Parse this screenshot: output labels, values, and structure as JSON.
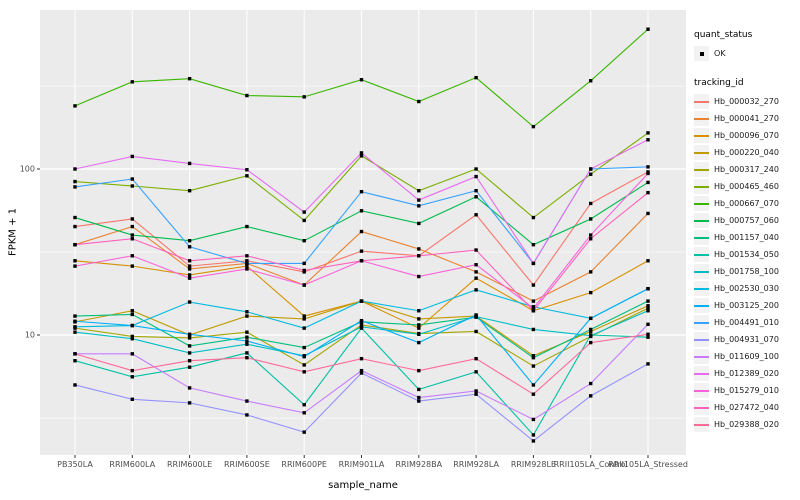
{
  "figure": {
    "background": "#FFFFFF",
    "panel_background": "#EBEBEB",
    "gridline_color": "#FFFFFF",
    "tick_label_color": "#4D4D4D",
    "point_color": "#000000"
  },
  "axes": {
    "x_title": "sample_name",
    "y_title": "FPKM + 1",
    "y_major_ticks": [
      {
        "label": "100",
        "value": 100
      },
      {
        "label": "10",
        "value": 10
      }
    ],
    "y_minor_ticks": [
      316,
      31.6,
      3.16
    ]
  },
  "legend": {
    "quant_status": {
      "title": "quant_status",
      "items": [
        {
          "label": "OK",
          "shape": "black-point"
        }
      ]
    },
    "tracking_id": {
      "title": "tracking_id"
    }
  },
  "chart_data": {
    "type": "line",
    "title": "",
    "xlabel": "sample_name",
    "ylabel": "FPKM + 1",
    "y_scale": "log10",
    "ylim": [
      2,
      900
    ],
    "grid": true,
    "legend_position": "right",
    "point_style": "small black square at every data point (quant_status = OK)",
    "categories": [
      "PB350LA",
      "RRIM600LA",
      "RRIM600LE",
      "RRIM600SE",
      "RRIM600PE",
      "RRIM901LA",
      "RRIM928BA",
      "RRIM928LA",
      "RRIM928LE",
      "RRII105LA_Control",
      "RRII105LA_Stressed"
    ],
    "series": [
      {
        "name": "Hb_000032_270",
        "color": "#F8766D",
        "values": [
          45,
          50,
          26,
          28,
          24,
          32,
          30,
          53,
          20,
          62,
          96
        ]
      },
      {
        "name": "Hb_000041_270",
        "color": "#EA8331",
        "values": [
          35,
          45,
          25,
          27,
          20,
          42,
          33,
          24,
          16,
          24,
          54
        ]
      },
      {
        "name": "Hb_000096_070",
        "color": "#D89000",
        "values": [
          28,
          26,
          23,
          26,
          13,
          16,
          11,
          22,
          14,
          18,
          28
        ]
      },
      {
        "name": "Hb_000220_040",
        "color": "#C09B00",
        "values": [
          12,
          14,
          10,
          13,
          12.5,
          16,
          12.5,
          13,
          7.5,
          10.5,
          15
        ]
      },
      {
        "name": "Hb_000317_240",
        "color": "#A3A500",
        "values": [
          11,
          9.8,
          9.6,
          10.4,
          6.6,
          11.5,
          10.2,
          10.5,
          6.5,
          9.8,
          14.5
        ]
      },
      {
        "name": "Hb_000465_460",
        "color": "#7CAE00",
        "values": [
          84,
          79,
          74,
          91,
          49,
          120,
          74,
          100,
          51,
          93,
          165
        ]
      },
      {
        "name": "Hb_000667_070",
        "color": "#39B600",
        "values": [
          240,
          335,
          350,
          277,
          272,
          345,
          255,
          355,
          180,
          340,
          695
        ]
      },
      {
        "name": "Hb_000757_060",
        "color": "#00BB4E",
        "values": [
          51,
          40,
          37,
          45,
          37,
          56,
          47,
          68,
          35,
          50,
          83
        ]
      },
      {
        "name": "Hb_001157_040",
        "color": "#00BF7D",
        "values": [
          13,
          13.3,
          8.6,
          9.7,
          8.4,
          12,
          11.5,
          12.8,
          7.3,
          10.8,
          16
        ]
      },
      {
        "name": "Hb_001534_050",
        "color": "#00C1A3",
        "values": [
          7.0,
          5.6,
          6.4,
          7.8,
          3.8,
          11,
          4.7,
          6.0,
          2.5,
          10,
          9.7
        ]
      },
      {
        "name": "Hb_001758_100",
        "color": "#00BFC4",
        "values": [
          10.4,
          9.5,
          7.8,
          8.8,
          7.5,
          11.2,
          10.1,
          12.9,
          10.8,
          9.9,
          14
        ]
      },
      {
        "name": "Hb_002530_030",
        "color": "#00BAE0",
        "values": [
          11.2,
          11.4,
          15.8,
          13.8,
          11.0,
          16,
          14,
          18.7,
          14.8,
          12.6,
          19
        ]
      },
      {
        "name": "Hb_003125_200",
        "color": "#00B0F6",
        "values": [
          12.1,
          11.4,
          10.1,
          9.2,
          7.4,
          12.2,
          9.0,
          13.2,
          5.0,
          12.6,
          19
        ]
      },
      {
        "name": "Hb_004491_010",
        "color": "#35A2FF",
        "values": [
          78,
          87,
          34,
          27,
          27,
          73,
          60,
          74,
          27,
          100,
          103
        ]
      },
      {
        "name": "Hb_004931_070",
        "color": "#9590FF",
        "values": [
          5.0,
          4.1,
          3.9,
          3.3,
          2.6,
          5.9,
          4.0,
          4.4,
          2.3,
          4.3,
          6.7
        ]
      },
      {
        "name": "Hb_011609_100",
        "color": "#C77CFF",
        "values": [
          7.7,
          7.7,
          4.8,
          4.0,
          3.4,
          6.1,
          4.2,
          4.6,
          3.1,
          5.1,
          11.6
        ]
      },
      {
        "name": "Hb_012389_020",
        "color": "#E76BF3",
        "values": [
          100,
          119,
          108,
          99,
          55,
          125,
          65,
          90,
          27,
          100,
          150
        ]
      },
      {
        "name": "Hb_015279_010",
        "color": "#FA62DB",
        "values": [
          26,
          30,
          22,
          25,
          20,
          28,
          22.5,
          26.5,
          14.5,
          40,
          94
        ]
      },
      {
        "name": "Hb_027472_040",
        "color": "#FF62BC",
        "values": [
          35,
          38,
          28,
          30,
          24.5,
          28,
          30,
          32.5,
          14,
          38,
          72
        ]
      },
      {
        "name": "Hb_029388_020",
        "color": "#FF6A98",
        "values": [
          7.7,
          6.1,
          7.0,
          7.3,
          6.0,
          7.2,
          6.1,
          7.2,
          4.4,
          9.0,
          10.1
        ]
      }
    ]
  }
}
